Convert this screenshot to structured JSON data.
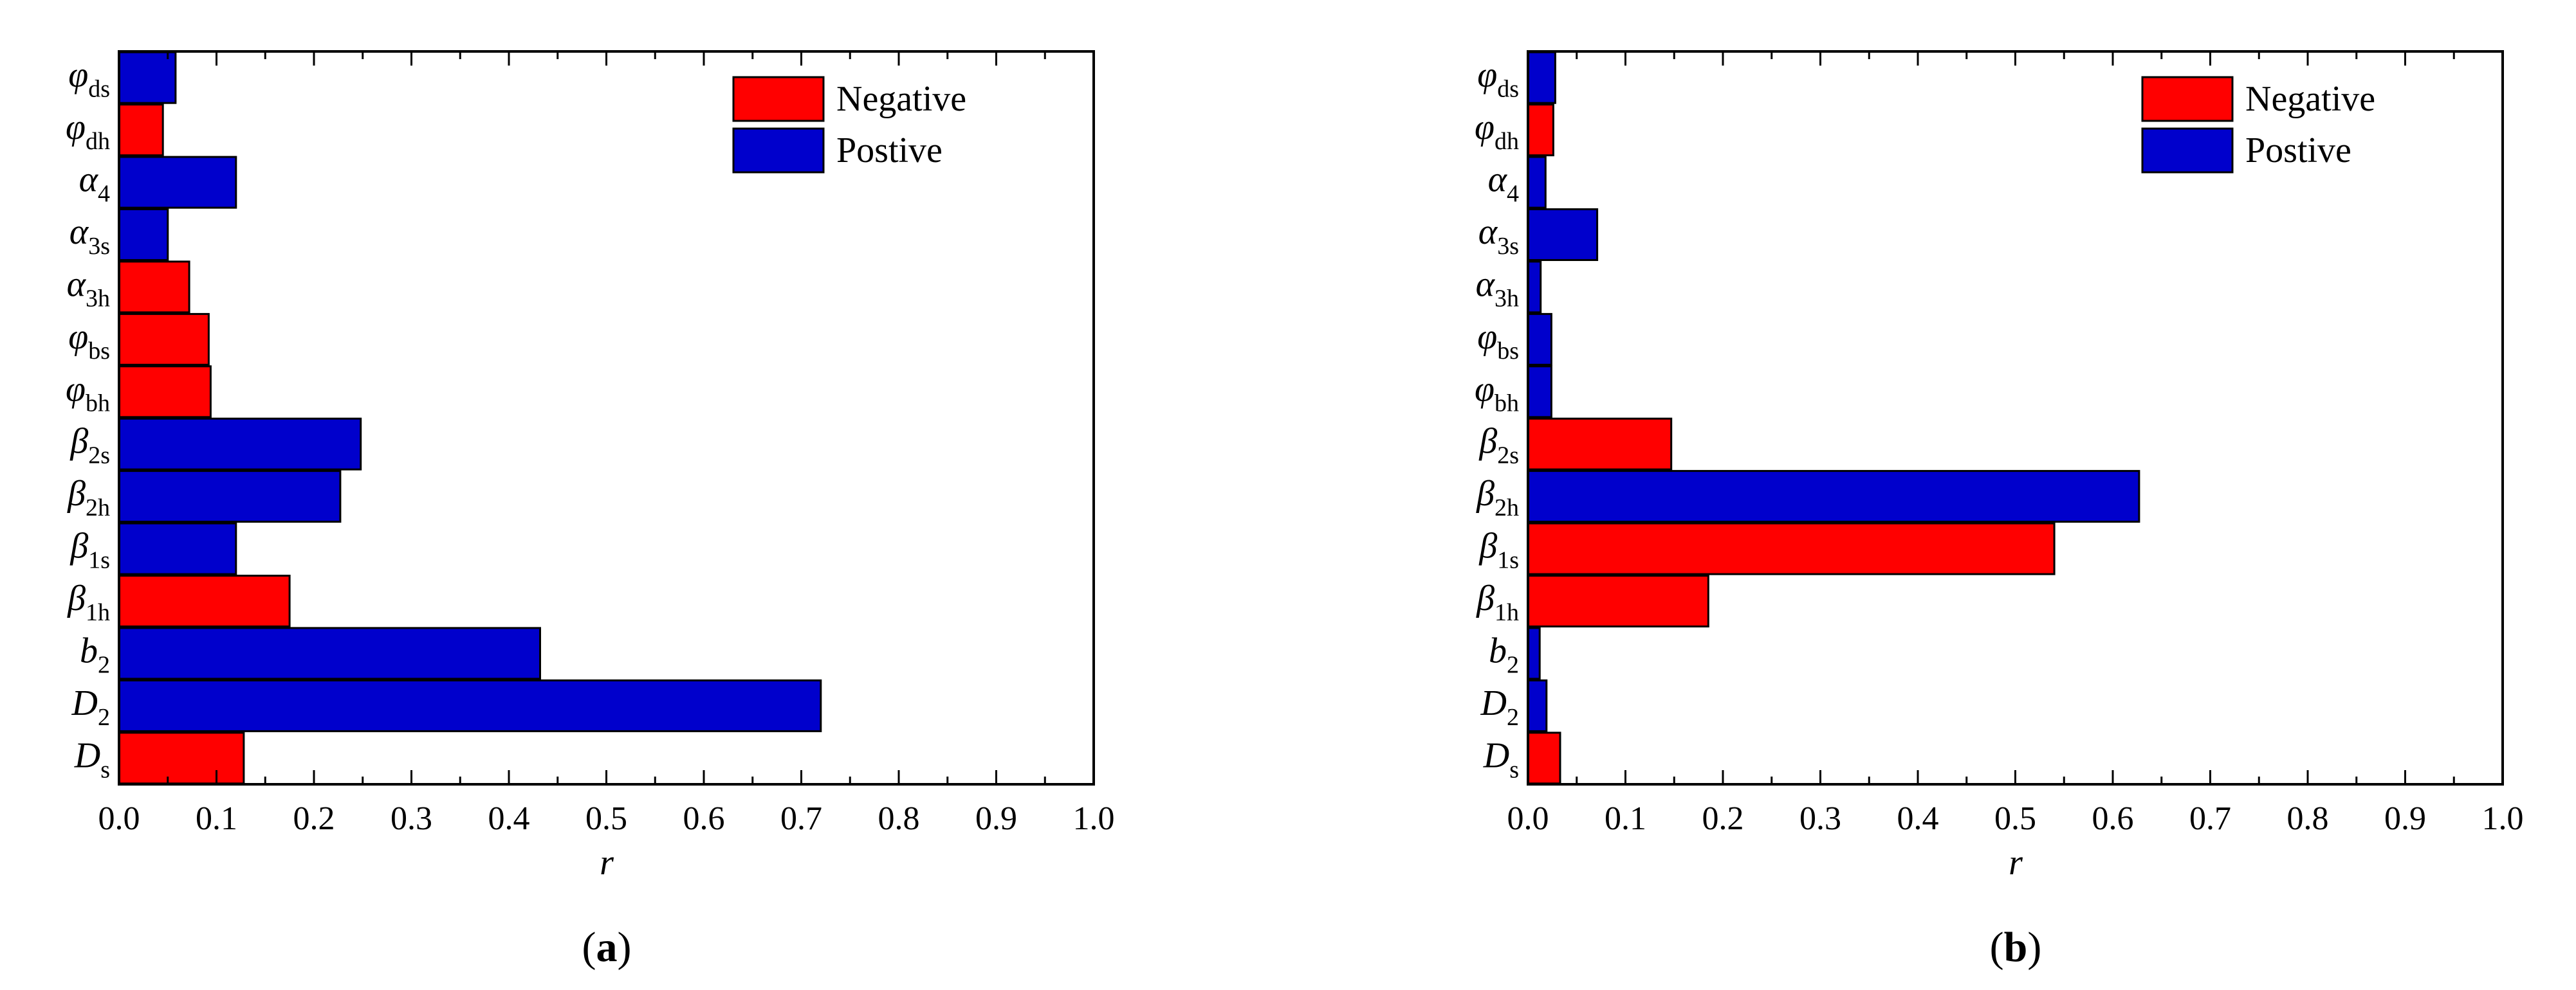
{
  "colors": {
    "negative": "#ff0000",
    "positive": "#0000cc",
    "axis": "#000000"
  },
  "chart_data": [
    {
      "type": "bar",
      "orientation": "horizontal",
      "panel_label": {
        "open": "(",
        "letter": "a",
        "close": ")"
      },
      "xlabel": "r",
      "xlim": [
        0,
        1.0
      ],
      "xticks": [
        "0.0",
        "0.1",
        "0.2",
        "0.3",
        "0.4",
        "0.5",
        "0.6",
        "0.7",
        "0.8",
        "0.9",
        "1.0"
      ],
      "legend": {
        "position": "top-right",
        "entries": [
          {
            "key": "negative",
            "label": "Negative"
          },
          {
            "key": "positive",
            "label": "Postive"
          }
        ]
      },
      "categories": [
        {
          "base": "D",
          "sub": "s",
          "value": 0.128,
          "sign": "negative"
        },
        {
          "base": "D",
          "sub": "2",
          "value": 0.72,
          "sign": "positive"
        },
        {
          "base": "b",
          "sub": "2",
          "value": 0.432,
          "sign": "positive"
        },
        {
          "base": "β",
          "sub": "1h",
          "value": 0.175,
          "sign": "negative"
        },
        {
          "base": "β",
          "sub": "1s",
          "value": 0.12,
          "sign": "positive"
        },
        {
          "base": "β",
          "sub": "2h",
          "value": 0.227,
          "sign": "positive"
        },
        {
          "base": "β",
          "sub": "2s",
          "value": 0.248,
          "sign": "positive"
        },
        {
          "base": "φ",
          "sub": "bh",
          "value": 0.094,
          "sign": "negative"
        },
        {
          "base": "φ",
          "sub": "bs",
          "value": 0.092,
          "sign": "negative"
        },
        {
          "base": "α",
          "sub": "3h",
          "value": 0.072,
          "sign": "negative"
        },
        {
          "base": "α",
          "sub": "3s",
          "value": 0.05,
          "sign": "positive"
        },
        {
          "base": "α",
          "sub": "4",
          "value": 0.12,
          "sign": "positive"
        },
        {
          "base": "φ",
          "sub": "dh",
          "value": 0.045,
          "sign": "negative"
        },
        {
          "base": "φ",
          "sub": "ds",
          "value": 0.058,
          "sign": "positive"
        }
      ]
    },
    {
      "type": "bar",
      "orientation": "horizontal",
      "panel_label": {
        "open": "(",
        "letter": "b",
        "close": ")"
      },
      "xlabel": "r",
      "xlim": [
        0,
        1.0
      ],
      "xticks": [
        "0.0",
        "0.1",
        "0.2",
        "0.3",
        "0.4",
        "0.5",
        "0.6",
        "0.7",
        "0.8",
        "0.9",
        "1.0"
      ],
      "legend": {
        "position": "top-right",
        "entries": [
          {
            "key": "negative",
            "label": "Negative"
          },
          {
            "key": "positive",
            "label": "Postive"
          }
        ]
      },
      "categories": [
        {
          "base": "D",
          "sub": "s",
          "value": 0.033,
          "sign": "negative"
        },
        {
          "base": "D",
          "sub": "2",
          "value": 0.019,
          "sign": "positive"
        },
        {
          "base": "b",
          "sub": "2",
          "value": 0.012,
          "sign": "positive"
        },
        {
          "base": "β",
          "sub": "1h",
          "value": 0.185,
          "sign": "negative"
        },
        {
          "base": "β",
          "sub": "1s",
          "value": 0.54,
          "sign": "negative"
        },
        {
          "base": "β",
          "sub": "2h",
          "value": 0.627,
          "sign": "positive"
        },
        {
          "base": "β",
          "sub": "2s",
          "value": 0.147,
          "sign": "negative"
        },
        {
          "base": "φ",
          "sub": "bh",
          "value": 0.024,
          "sign": "positive"
        },
        {
          "base": "φ",
          "sub": "bs",
          "value": 0.024,
          "sign": "positive"
        },
        {
          "base": "α",
          "sub": "3h",
          "value": 0.013,
          "sign": "positive"
        },
        {
          "base": "α",
          "sub": "3s",
          "value": 0.071,
          "sign": "positive"
        },
        {
          "base": "α",
          "sub": "4",
          "value": 0.018,
          "sign": "positive"
        },
        {
          "base": "φ",
          "sub": "dh",
          "value": 0.026,
          "sign": "negative"
        },
        {
          "base": "φ",
          "sub": "ds",
          "value": 0.028,
          "sign": "positive"
        }
      ]
    }
  ]
}
